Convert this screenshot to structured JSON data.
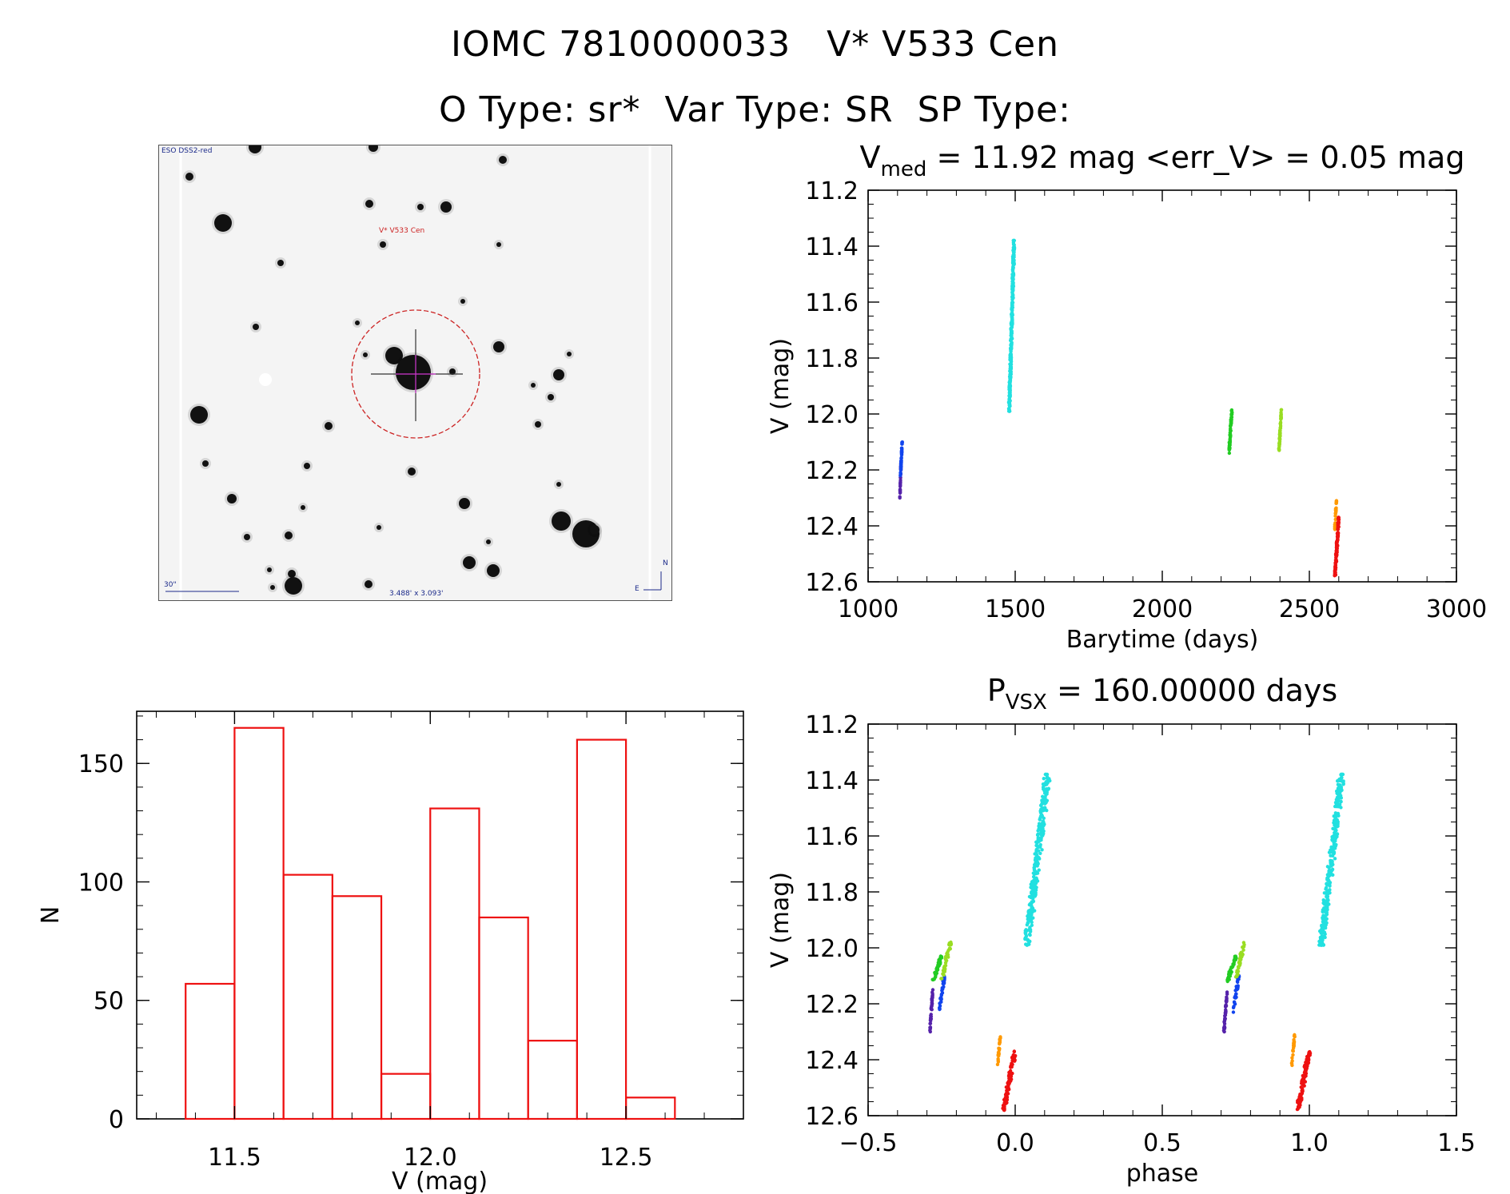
{
  "header": {
    "line1": "IOMC 7810000033   V* V533 Cen",
    "line2": "O Type: sr*  Var Type: SR  SP Type:"
  },
  "finder_chart": {
    "survey_label": "ESO DSS2-red",
    "target_label": "V* V533 Cen",
    "scale_label": "30\"",
    "fov_label": "3.488' x 3.093'",
    "compass_north": "N",
    "compass_east": "E",
    "colors": {
      "background": "#f4f4f4",
      "circle": "#cc2222",
      "crosshair": "#cc33cc",
      "labels": "#1b2a8a"
    }
  },
  "chart_data": [
    {
      "type": "scatter",
      "id": "light-curve",
      "title_main": "V",
      "title_sub": "med",
      "title_rest": " = 11.92 mag <err_V> = 0.05 mag",
      "xlabel": "Barytime (days)",
      "ylabel": "V (mag)",
      "xlim": [
        1000,
        3000
      ],
      "ylim": [
        11.2,
        12.6
      ],
      "y_inverted": true,
      "xticks": [
        1000,
        1500,
        2000,
        2500,
        3000
      ],
      "yticks": [
        11.2,
        11.4,
        11.6,
        11.8,
        12.0,
        12.2,
        12.4,
        12.6
      ],
      "groups": [
        {
          "name": "season-1-purple",
          "color": "#5522aa",
          "x_min": 1108,
          "x_max": 1112,
          "y_min": 12.17,
          "y_max": 12.3,
          "n": 40
        },
        {
          "name": "season-1-blue",
          "color": "#1144ee",
          "x_min": 1110,
          "x_max": 1116,
          "y_min": 12.1,
          "y_max": 12.22,
          "n": 40
        },
        {
          "name": "season-2-cyan",
          "color": "#22e0e0",
          "x_min": 1480,
          "x_max": 1496,
          "y_min": 11.38,
          "y_max": 11.99,
          "n": 330
        },
        {
          "name": "season-3-green",
          "color": "#22cc22",
          "x_min": 2227,
          "x_max": 2237,
          "y_min": 11.98,
          "y_max": 12.14,
          "n": 60
        },
        {
          "name": "season-4-yellowgreen",
          "color": "#99dd22",
          "x_min": 2397,
          "x_max": 2405,
          "y_min": 11.98,
          "y_max": 12.13,
          "n": 50
        },
        {
          "name": "season-5-orange",
          "color": "#ff9900",
          "x_min": 2586,
          "x_max": 2592,
          "y_min": 12.31,
          "y_max": 12.42,
          "n": 25
        },
        {
          "name": "season-5-red",
          "color": "#ee1111",
          "x_min": 2587,
          "x_max": 2600,
          "y_min": 12.37,
          "y_max": 12.58,
          "n": 110
        }
      ]
    },
    {
      "type": "bar",
      "id": "histogram",
      "xlabel": "V (mag)",
      "ylabel": "N",
      "xlim": [
        11.25,
        12.8
      ],
      "ylim": [
        0,
        172
      ],
      "xticks": [
        11.5,
        12.0,
        12.5
      ],
      "yticks": [
        0,
        50,
        100,
        150
      ],
      "bin_edges": [
        11.375,
        11.5,
        11.625,
        11.75,
        11.875,
        12.0,
        12.125,
        12.25,
        12.375,
        12.5,
        12.625
      ],
      "values": [
        57,
        165,
        103,
        94,
        19,
        131,
        85,
        33,
        160,
        9
      ],
      "bar_color": "#ee1111"
    },
    {
      "type": "scatter",
      "id": "phased-light-curve",
      "title_main": "P",
      "title_sub": "VSX",
      "title_rest": " = 160.00000 days",
      "xlabel": "phase",
      "ylabel": "V (mag)",
      "xlim": [
        -0.5,
        1.5
      ],
      "ylim": [
        11.2,
        12.6
      ],
      "y_inverted": true,
      "xticks": [
        -0.5,
        0.0,
        0.5,
        1.0,
        1.5
      ],
      "yticks": [
        11.2,
        11.4,
        11.6,
        11.8,
        12.0,
        12.2,
        12.4,
        12.6
      ],
      "groups": [
        {
          "name": "phase-purple",
          "color": "#5522aa",
          "x_min": -0.29,
          "x_max": -0.28,
          "y_min": 12.15,
          "y_max": 12.3,
          "n": 40
        },
        {
          "name": "phase-green",
          "color": "#22cc22",
          "x_min": -0.28,
          "x_max": -0.25,
          "y_min": 12.03,
          "y_max": 12.12,
          "n": 40
        },
        {
          "name": "phase-blue",
          "color": "#1144ee",
          "x_min": -0.26,
          "x_max": -0.24,
          "y_min": 12.1,
          "y_max": 12.23,
          "n": 35
        },
        {
          "name": "phase-yellowgreen",
          "color": "#99dd22",
          "x_min": -0.25,
          "x_max": -0.22,
          "y_min": 11.98,
          "y_max": 12.11,
          "n": 40
        },
        {
          "name": "phase-orange",
          "color": "#ff9900",
          "x_min": -0.06,
          "x_max": -0.05,
          "y_min": 12.31,
          "y_max": 12.42,
          "n": 25
        },
        {
          "name": "phase-red",
          "color": "#ee1111",
          "x_min": -0.04,
          "x_max": 0.0,
          "y_min": 12.37,
          "y_max": 12.58,
          "n": 100
        },
        {
          "name": "phase-cyan",
          "color": "#22e0e0",
          "x_min": 0.04,
          "x_max": 0.11,
          "y_min": 11.38,
          "y_max": 11.99,
          "n": 300
        }
      ]
    }
  ]
}
